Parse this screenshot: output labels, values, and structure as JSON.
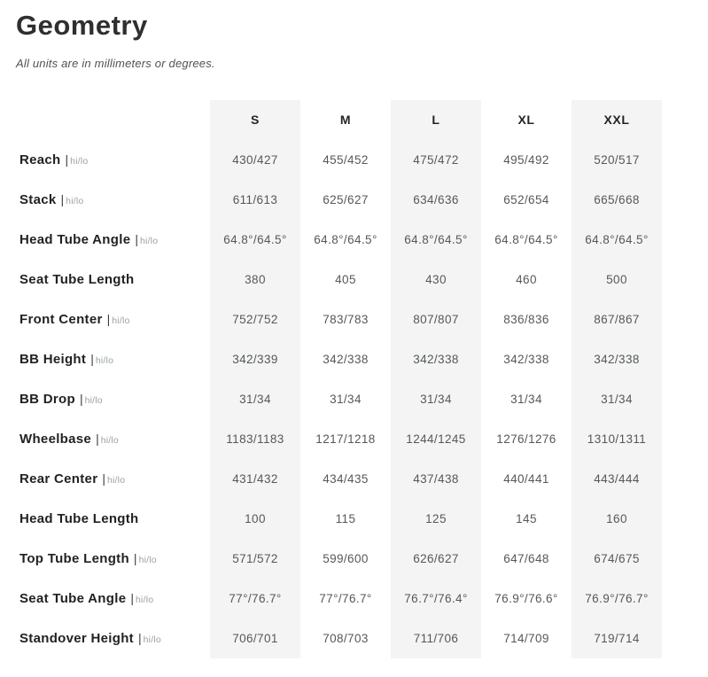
{
  "page": {
    "title": "Geometry",
    "subtitle": "All units are in millimeters or degrees."
  },
  "table": {
    "hilo_label": "hi/lo",
    "separator": "|",
    "columns": [
      "S",
      "M",
      "L",
      "XL",
      "XXL"
    ],
    "shaded_column_indexes": [
      0,
      2,
      4
    ],
    "rows": [
      {
        "label": "Reach",
        "hilo": true,
        "values": [
          "430/427",
          "455/452",
          "475/472",
          "495/492",
          "520/517"
        ]
      },
      {
        "label": "Stack",
        "hilo": true,
        "values": [
          "611/613",
          "625/627",
          "634/636",
          "652/654",
          "665/668"
        ]
      },
      {
        "label": "Head Tube Angle",
        "hilo": true,
        "values": [
          "64.8°/64.5°",
          "64.8°/64.5°",
          "64.8°/64.5°",
          "64.8°/64.5°",
          "64.8°/64.5°"
        ]
      },
      {
        "label": "Seat Tube Length",
        "hilo": false,
        "values": [
          "380",
          "405",
          "430",
          "460",
          "500"
        ]
      },
      {
        "label": "Front Center",
        "hilo": true,
        "values": [
          "752/752",
          "783/783",
          "807/807",
          "836/836",
          "867/867"
        ]
      },
      {
        "label": "BB Height",
        "hilo": true,
        "values": [
          "342/339",
          "342/338",
          "342/338",
          "342/338",
          "342/338"
        ]
      },
      {
        "label": "BB Drop",
        "hilo": true,
        "values": [
          "31/34",
          "31/34",
          "31/34",
          "31/34",
          "31/34"
        ]
      },
      {
        "label": "Wheelbase",
        "hilo": true,
        "values": [
          "1183/1183",
          "1217/1218",
          "1244/1245",
          "1276/1276",
          "1310/1311"
        ]
      },
      {
        "label": "Rear Center",
        "hilo": true,
        "values": [
          "431/432",
          "434/435",
          "437/438",
          "440/441",
          "443/444"
        ]
      },
      {
        "label": "Head Tube Length",
        "hilo": false,
        "values": [
          "100",
          "115",
          "125",
          "145",
          "160"
        ]
      },
      {
        "label": "Top Tube Length",
        "hilo": true,
        "values": [
          "571/572",
          "599/600",
          "626/627",
          "647/648",
          "674/675"
        ]
      },
      {
        "label": "Seat Tube Angle",
        "hilo": true,
        "values": [
          "77°/76.7°",
          "77°/76.7°",
          "76.7°/76.4°",
          "76.9°/76.6°",
          "76.9°/76.7°"
        ]
      },
      {
        "label": "Standover Height",
        "hilo": true,
        "values": [
          "706/701",
          "708/703",
          "711/706",
          "714/709",
          "719/714"
        ]
      }
    ]
  },
  "colors": {
    "shaded_column_bg": "#f4f4f4",
    "title_text": "#2e2f30",
    "label_text": "#1f2122",
    "value_text": "#54585a",
    "hilo_text": "#9ba1a5"
  }
}
